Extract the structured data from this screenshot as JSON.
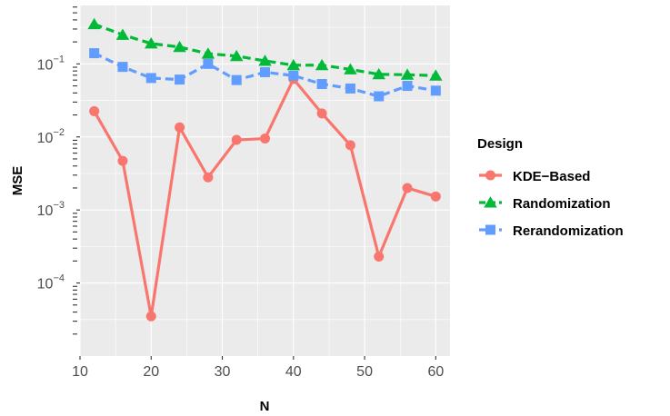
{
  "chart_data": {
    "type": "line",
    "x_label": "N",
    "y_label": "MSE",
    "y_scale": "log10",
    "xlim": [
      10,
      62
    ],
    "ylim_log10": [
      -5.0,
      -0.2
    ],
    "x_ticks": [
      10,
      20,
      30,
      40,
      50,
      60
    ],
    "x_tick_labels": [
      "10",
      "20",
      "30",
      "40",
      "50",
      "60"
    ],
    "y_ticks": [
      {
        "base": "10",
        "exp": "−4",
        "value": 0.0001
      },
      {
        "base": "10",
        "exp": "−3",
        "value": 0.001
      },
      {
        "base": "10",
        "exp": "−2",
        "value": 0.01
      },
      {
        "base": "10",
        "exp": "−1",
        "value": 0.1
      }
    ],
    "grid": true,
    "legend": {
      "title": "Design",
      "position": "right"
    },
    "x": [
      12,
      16,
      20,
      24,
      28,
      32,
      36,
      40,
      44,
      48,
      52,
      56,
      60
    ],
    "series": [
      {
        "name": "KDE−Based",
        "color": "#F8766D",
        "marker": "circle",
        "dash": "solid",
        "values": [
          0.0225,
          0.0047,
          3.5e-05,
          0.0135,
          0.0028,
          0.0091,
          0.0095,
          0.062,
          0.021,
          0.0077,
          0.00023,
          0.002,
          0.00153
        ]
      },
      {
        "name": "Randomization",
        "color": "#00BA38",
        "marker": "triangle",
        "dash": "dashed",
        "values": [
          0.35,
          0.25,
          0.19,
          0.17,
          0.138,
          0.128,
          0.11,
          0.096,
          0.096,
          0.084,
          0.072,
          0.071,
          0.069
        ]
      },
      {
        "name": "Rerandomization",
        "color": "#619CFF",
        "marker": "square",
        "dash": "dashed",
        "values": [
          0.14,
          0.091,
          0.064,
          0.061,
          0.1,
          0.06,
          0.077,
          0.069,
          0.053,
          0.046,
          0.036,
          0.05,
          0.043
        ]
      }
    ]
  }
}
